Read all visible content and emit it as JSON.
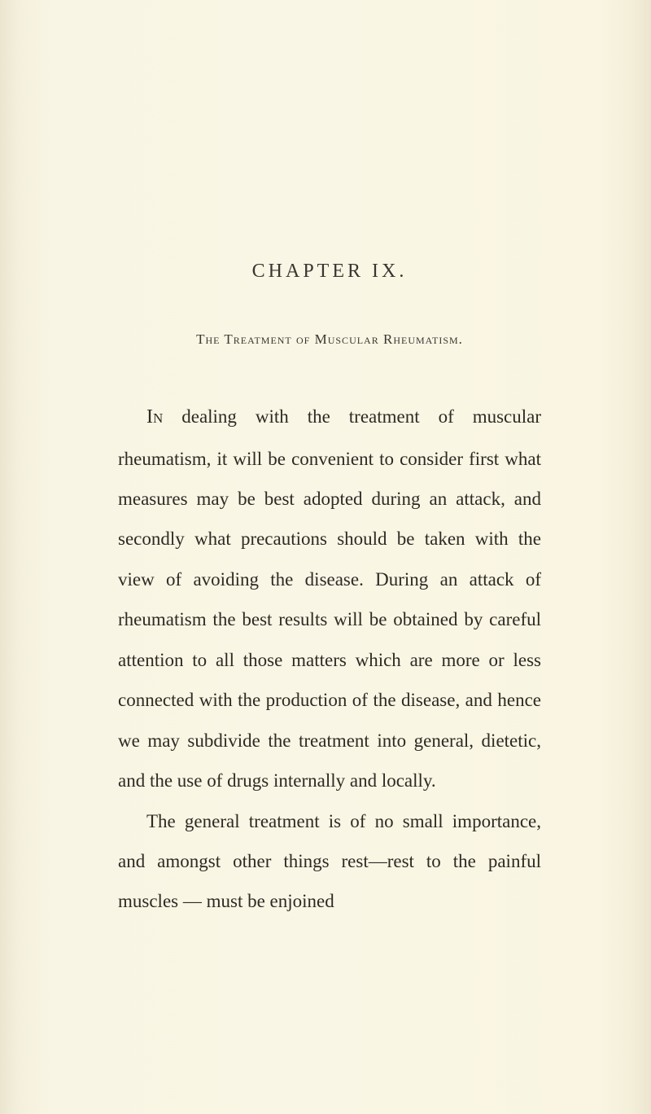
{
  "page": {
    "background_color": "#f8f4e3",
    "text_color": "#2e2a24",
    "heading_color": "#3a3530",
    "font_family": "Georgia, 'Times New Roman', serif",
    "body_font_size": 23,
    "body_line_height": 2.15,
    "heading_font_size": 24,
    "subtitle_font_size": 17
  },
  "chapter": {
    "heading": "CHAPTER IX.",
    "subtitle": "The Treatment of Muscular Rheumatism."
  },
  "paragraphs": {
    "p1_first": "In",
    "p1_rest": " dealing with the treatment of muscular rheumatism, it will be convenient to consider first what measures may be best adopted during an attack, and secondly what precautions should be taken with the view of avoiding the disease. During an attack of rheumatism the best results will be obtained by careful attention to all those matters which are more or less connected with the production of the disease, and hence we may subdivide the treatment into general, dietetic, and the use of drugs internally and locally.",
    "p2": "The general treatment is of no small importance, and amongst other things rest—rest to the painful muscles — must be enjoined"
  }
}
